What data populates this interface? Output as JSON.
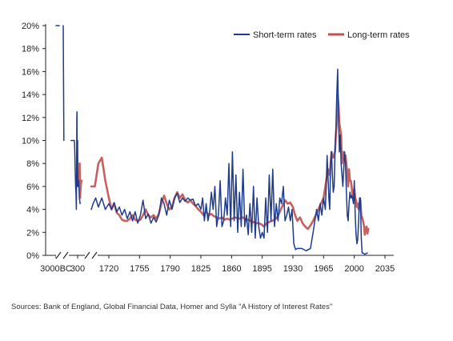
{
  "chart_data": {
    "type": "line",
    "title": "",
    "xlabel": "",
    "ylabel": "",
    "ylim": [
      0,
      20
    ],
    "yticks": [
      "0%",
      "2%",
      "4%",
      "6%",
      "8%",
      "10%",
      "12%",
      "14%",
      "16%",
      "18%",
      "20%"
    ],
    "xticks": [
      "3000BC",
      "300",
      "1720",
      "1755",
      "1790",
      "1825",
      "1860",
      "1895",
      "1930",
      "1965",
      "2000",
      "2035"
    ],
    "axis_breaks": [
      "between 3000BC and 300",
      "between 300 and 1720"
    ],
    "legend": {
      "placement": "top-right"
    },
    "grid": false,
    "series": [
      {
        "name": "Short-term rates",
        "color": "#1f3b8c",
        "points": [
          [
            "3000BC",
            20
          ],
          [
            -2500,
            20
          ],
          [
            -1900,
            20
          ],
          [
            -1800,
            10
          ],
          [
            -700,
            10
          ],
          [
            -200,
            10
          ],
          [
            -150,
            9.5
          ],
          [
            -50,
            7
          ],
          [
            0,
            6
          ],
          [
            40,
            5.5
          ],
          [
            100,
            4
          ],
          [
            130,
            6
          ],
          [
            180,
            12
          ],
          [
            200,
            12.5
          ],
          [
            230,
            6
          ],
          [
            260,
            8.5
          ],
          [
            280,
            6
          ],
          [
            300,
            10
          ],
          [
            320,
            6
          ],
          [
            380,
            6.5
          ],
          [
            440,
            5
          ],
          [
            500,
            4.5
          ],
          [
            1700,
            4
          ],
          [
            1702,
            4.5
          ],
          [
            1705,
            5
          ],
          [
            1708,
            4.2
          ],
          [
            1712,
            5
          ],
          [
            1716,
            4
          ],
          [
            1720,
            4.5
          ],
          [
            1723,
            4
          ],
          [
            1726,
            4.6
          ],
          [
            1729,
            3.8
          ],
          [
            1732,
            4.2
          ],
          [
            1735,
            3.5
          ],
          [
            1738,
            4
          ],
          [
            1741,
            3.2
          ],
          [
            1744,
            3.8
          ],
          [
            1747,
            3
          ],
          [
            1750,
            3.8
          ],
          [
            1753,
            2.8
          ],
          [
            1756,
            3.5
          ],
          [
            1759,
            4.8
          ],
          [
            1762,
            3.2
          ],
          [
            1765,
            3.6
          ],
          [
            1768,
            2.8
          ],
          [
            1771,
            3.3
          ],
          [
            1774,
            2.9
          ],
          [
            1777,
            3.5
          ],
          [
            1780,
            5
          ],
          [
            1783,
            4.5
          ],
          [
            1786,
            3.5
          ],
          [
            1789,
            4.8
          ],
          [
            1792,
            4
          ],
          [
            1795,
            5
          ],
          [
            1798,
            5.4
          ],
          [
            1801,
            4.6
          ],
          [
            1804,
            5
          ],
          [
            1807,
            4.7
          ],
          [
            1810,
            5
          ],
          [
            1813,
            4.8
          ],
          [
            1816,
            4.9
          ],
          [
            1819,
            4.3
          ],
          [
            1822,
            4.5
          ],
          [
            1825,
            4
          ],
          [
            1827,
            5
          ],
          [
            1829,
            3
          ],
          [
            1831,
            4.5
          ],
          [
            1833,
            3
          ],
          [
            1835,
            3.8
          ],
          [
            1837,
            5.5
          ],
          [
            1839,
            4
          ],
          [
            1841,
            6
          ],
          [
            1843,
            2.5
          ],
          [
            1845,
            3.5
          ],
          [
            1847,
            6.5
          ],
          [
            1849,
            2.5
          ],
          [
            1851,
            3
          ],
          [
            1853,
            5
          ],
          [
            1855,
            3.5
          ],
          [
            1857,
            8
          ],
          [
            1859,
            2.5
          ],
          [
            1861,
            9
          ],
          [
            1863,
            3
          ],
          [
            1865,
            7
          ],
          [
            1867,
            2
          ],
          [
            1869,
            5.5
          ],
          [
            1871,
            2.5
          ],
          [
            1873,
            7.5
          ],
          [
            1875,
            2.5
          ],
          [
            1877,
            3.5
          ],
          [
            1879,
            1.8
          ],
          [
            1881,
            4.5
          ],
          [
            1883,
            2
          ],
          [
            1885,
            6
          ],
          [
            1887,
            1.5
          ],
          [
            1889,
            5
          ],
          [
            1891,
            2.5
          ],
          [
            1893,
            1.5
          ],
          [
            1895,
            2
          ],
          [
            1897,
            1.5
          ],
          [
            1899,
            5
          ],
          [
            1901,
            2
          ],
          [
            1903,
            7
          ],
          [
            1905,
            3
          ],
          [
            1907,
            7.5
          ],
          [
            1909,
            2.5
          ],
          [
            1911,
            4.5
          ],
          [
            1913,
            3
          ],
          [
            1915,
            5
          ],
          [
            1917,
            4.5
          ],
          [
            1919,
            6
          ],
          [
            1921,
            3
          ],
          [
            1923,
            3.5
          ],
          [
            1925,
            4.2
          ],
          [
            1927,
            3
          ],
          [
            1929,
            4
          ],
          [
            1931,
            1
          ],
          [
            1933,
            0.5
          ],
          [
            1935,
            0.6
          ],
          [
            1937,
            0.6
          ],
          [
            1940,
            0.6
          ],
          [
            1945,
            0.4
          ],
          [
            1950,
            0.6
          ],
          [
            1953,
            2
          ],
          [
            1955,
            3
          ],
          [
            1957,
            4
          ],
          [
            1959,
            3
          ],
          [
            1961,
            4.5
          ],
          [
            1963,
            3.5
          ],
          [
            1965,
            5
          ],
          [
            1967,
            4
          ],
          [
            1968,
            6
          ],
          [
            1969,
            8.7
          ],
          [
            1970,
            7
          ],
          [
            1971,
            5
          ],
          [
            1972,
            4
          ],
          [
            1973,
            8
          ],
          [
            1974,
            9
          ],
          [
            1975,
            7
          ],
          [
            1976,
            5.5
          ],
          [
            1977,
            6
          ],
          [
            1978,
            9
          ],
          [
            1979,
            11
          ],
          [
            1980,
            14
          ],
          [
            1981,
            16.2
          ],
          [
            1982,
            12
          ],
          [
            1983,
            9
          ],
          [
            1984,
            10.5
          ],
          [
            1985,
            8
          ],
          [
            1986,
            7
          ],
          [
            1987,
            6
          ],
          [
            1988,
            7.5
          ],
          [
            1989,
            9
          ],
          [
            1990,
            8
          ],
          [
            1991,
            5.5
          ],
          [
            1992,
            3.5
          ],
          [
            1993,
            3
          ],
          [
            1994,
            4.5
          ],
          [
            1995,
            5.5
          ],
          [
            1996,
            5
          ],
          [
            1997,
            5.2
          ],
          [
            1998,
            5
          ],
          [
            1999,
            4.5
          ],
          [
            2000,
            6.5
          ],
          [
            2001,
            3.5
          ],
          [
            2002,
            1.8
          ],
          [
            2003,
            1
          ],
          [
            2004,
            1.4
          ],
          [
            2005,
            3
          ],
          [
            2006,
            5
          ],
          [
            2007,
            5
          ],
          [
            2008,
            1.5
          ],
          [
            2009,
            0.2
          ],
          [
            2010,
            0.2
          ],
          [
            2012,
            0.1
          ],
          [
            2015,
            0.2
          ]
        ]
      },
      {
        "name": "Long-term rates",
        "color": "#c0504d",
        "points": [
          [
            420,
            6
          ],
          [
            460,
            8
          ],
          [
            500,
            5
          ],
          [
            540,
            6
          ],
          [
            600,
            6.5
          ],
          [
            1700,
            6
          ],
          [
            1704,
            6
          ],
          [
            1708,
            8
          ],
          [
            1712,
            8.5
          ],
          [
            1716,
            6.5
          ],
          [
            1720,
            5
          ],
          [
            1723,
            4
          ],
          [
            1726,
            4.5
          ],
          [
            1729,
            3.7
          ],
          [
            1732,
            3.5
          ],
          [
            1735,
            3.1
          ],
          [
            1738,
            3
          ],
          [
            1741,
            3
          ],
          [
            1744,
            3.2
          ],
          [
            1747,
            3.5
          ],
          [
            1750,
            3.1
          ],
          [
            1753,
            3
          ],
          [
            1756,
            3.1
          ],
          [
            1759,
            3.5
          ],
          [
            1762,
            4
          ],
          [
            1765,
            3.5
          ],
          [
            1768,
            3.3
          ],
          [
            1771,
            3.5
          ],
          [
            1774,
            3.2
          ],
          [
            1777,
            3.6
          ],
          [
            1780,
            4.5
          ],
          [
            1783,
            5.2
          ],
          [
            1786,
            4.5
          ],
          [
            1789,
            4
          ],
          [
            1792,
            4.2
          ],
          [
            1795,
            5
          ],
          [
            1798,
            5.5
          ],
          [
            1801,
            5
          ],
          [
            1804,
            5.3
          ],
          [
            1807,
            4.8
          ],
          [
            1810,
            4.6
          ],
          [
            1813,
            4.8
          ],
          [
            1816,
            4.5
          ],
          [
            1819,
            4.3
          ],
          [
            1822,
            4
          ],
          [
            1825,
            3.8
          ],
          [
            1828,
            3.5
          ],
          [
            1831,
            3.8
          ],
          [
            1834,
            3.5
          ],
          [
            1837,
            3.6
          ],
          [
            1840,
            3.4
          ],
          [
            1843,
            3.3
          ],
          [
            1846,
            3.2
          ],
          [
            1849,
            3.3
          ],
          [
            1852,
            3.1
          ],
          [
            1855,
            3.2
          ],
          [
            1858,
            3.1
          ],
          [
            1861,
            3.2
          ],
          [
            1864,
            3.3
          ],
          [
            1867,
            3.2
          ],
          [
            1870,
            3.2
          ],
          [
            1873,
            3.3
          ],
          [
            1876,
            3.1
          ],
          [
            1879,
            3.1
          ],
          [
            1882,
            3
          ],
          [
            1885,
            2.9
          ],
          [
            1888,
            2.8
          ],
          [
            1891,
            2.8
          ],
          [
            1894,
            2.7
          ],
          [
            1897,
            2.5
          ],
          [
            1900,
            2.8
          ],
          [
            1903,
            2.9
          ],
          [
            1906,
            3
          ],
          [
            1909,
            3.1
          ],
          [
            1912,
            3.3
          ],
          [
            1915,
            3.8
          ],
          [
            1918,
            4.3
          ],
          [
            1921,
            4.8
          ],
          [
            1924,
            4.5
          ],
          [
            1927,
            4.6
          ],
          [
            1930,
            4.2
          ],
          [
            1932,
            3.6
          ],
          [
            1935,
            3
          ],
          [
            1938,
            3.3
          ],
          [
            1941,
            2.8
          ],
          [
            1944,
            2.5
          ],
          [
            1947,
            2.3
          ],
          [
            1950,
            2.6
          ],
          [
            1953,
            3
          ],
          [
            1956,
            3.5
          ],
          [
            1959,
            4
          ],
          [
            1962,
            4.5
          ],
          [
            1965,
            5
          ],
          [
            1968,
            6.5
          ],
          [
            1970,
            7.5
          ],
          [
            1972,
            7
          ],
          [
            1974,
            9
          ],
          [
            1976,
            8.5
          ],
          [
            1978,
            9
          ],
          [
            1979,
            10.5
          ],
          [
            1980,
            11.5
          ],
          [
            1981,
            14
          ],
          [
            1982,
            13
          ],
          [
            1983,
            11.5
          ],
          [
            1984,
            11
          ],
          [
            1985,
            10.5
          ],
          [
            1986,
            8
          ],
          [
            1987,
            8.5
          ],
          [
            1988,
            9
          ],
          [
            1989,
            8.5
          ],
          [
            1990,
            8.7
          ],
          [
            1991,
            8
          ],
          [
            1992,
            7
          ],
          [
            1993,
            6
          ],
          [
            1994,
            7.5
          ],
          [
            1995,
            6.5
          ],
          [
            1996,
            6.5
          ],
          [
            1997,
            6
          ],
          [
            1998,
            5
          ],
          [
            1999,
            5.5
          ],
          [
            2000,
            5.8
          ],
          [
            2001,
            5
          ],
          [
            2002,
            4.8
          ],
          [
            2003,
            4.2
          ],
          [
            2004,
            4.5
          ],
          [
            2005,
            4
          ],
          [
            2006,
            4.5
          ],
          [
            2007,
            4.8
          ],
          [
            2008,
            3.5
          ],
          [
            2009,
            3.3
          ],
          [
            2010,
            3
          ],
          [
            2011,
            2.6
          ],
          [
            2012,
            1.8
          ],
          [
            2013,
            2.4
          ],
          [
            2014,
            2.5
          ],
          [
            2015,
            1.9
          ],
          [
            2016,
            2.3
          ]
        ]
      }
    ]
  },
  "source_note": "Sources: Bank of England, Global Financial Data, Homer and Sylla \"A History of Interest Rates\""
}
